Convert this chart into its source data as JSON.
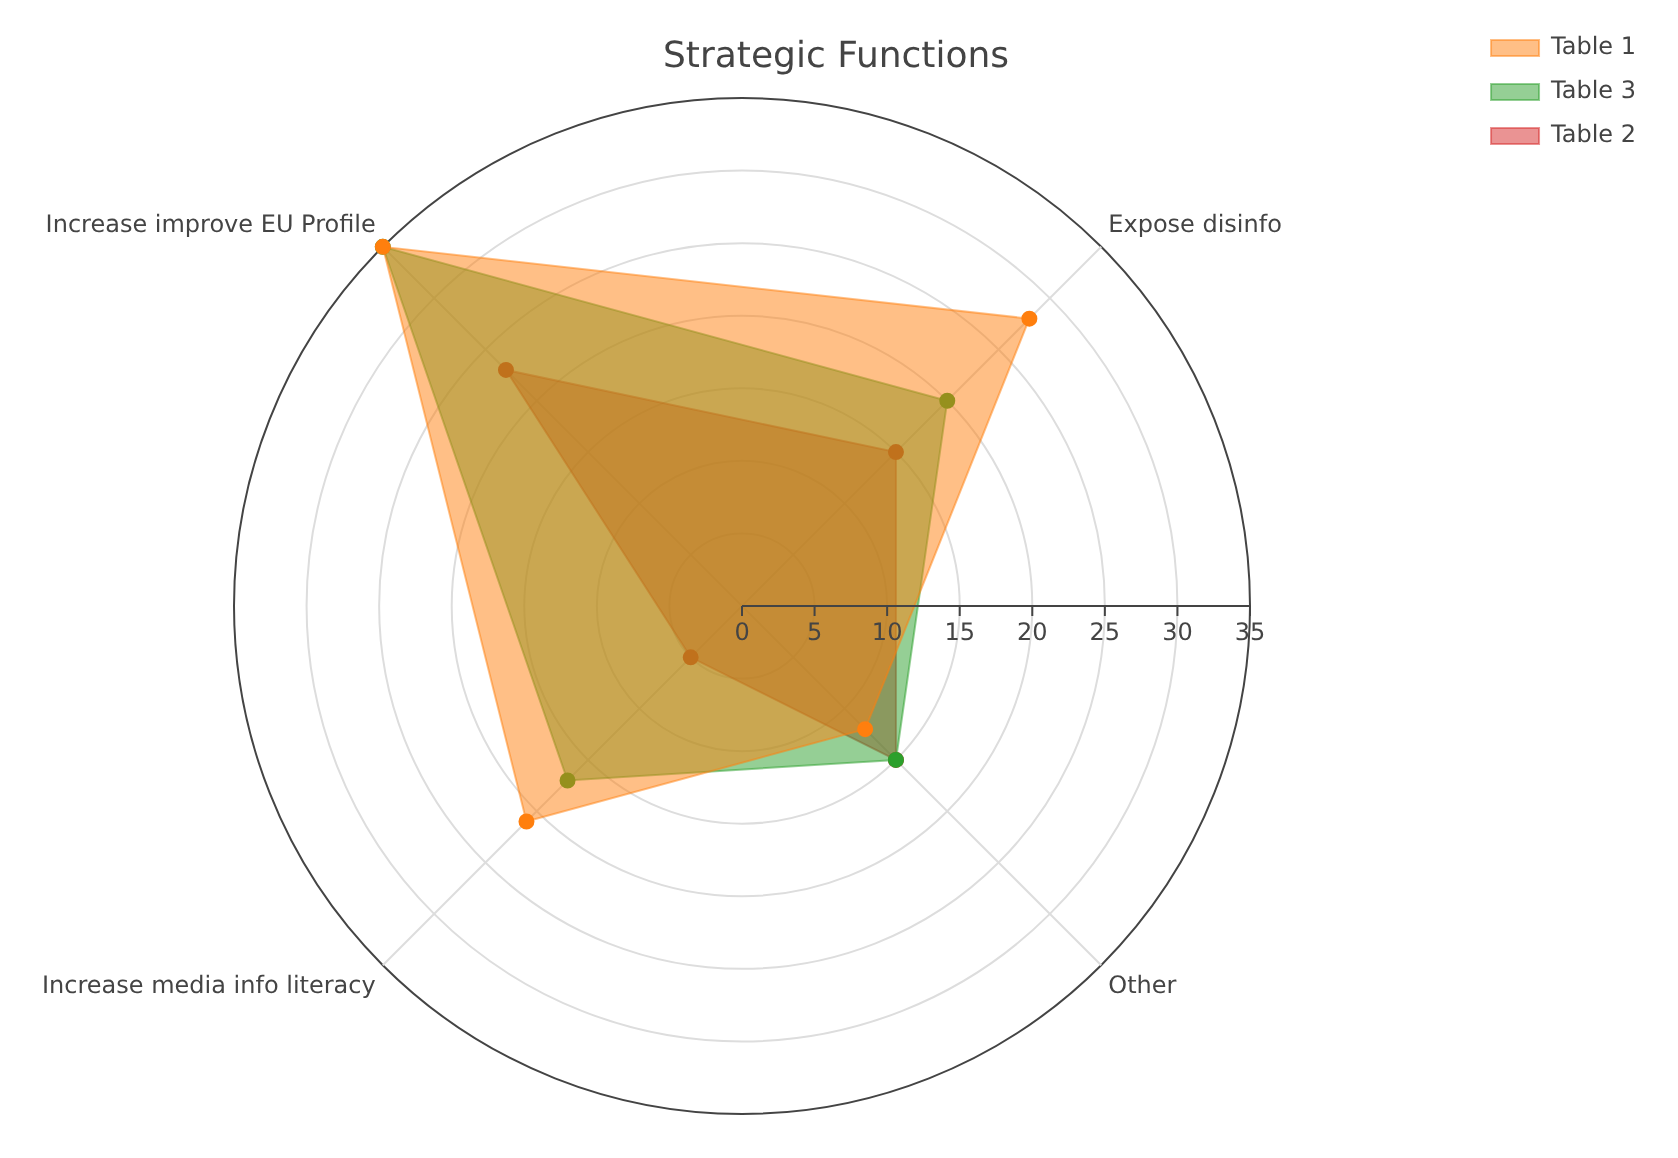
{
  "chart_data": {
    "type": "radar",
    "title": "Strategic Functions",
    "categories": [
      "Expose disinfo",
      "Other",
      "Increase media info literacy",
      "Increase improve EU Profile"
    ],
    "series": [
      {
        "name": "Table 1",
        "color": "#ff7f0e",
        "values": [
          28,
          12,
          21,
          35
        ]
      },
      {
        "name": "Table 3",
        "color": "#2ca02c",
        "values": [
          20,
          15,
          17,
          35
        ]
      },
      {
        "name": "Table 2",
        "color": "#d62728",
        "values": [
          15,
          15,
          5,
          23
        ]
      }
    ],
    "ylim": [
      0,
      35
    ],
    "yticks": [
      0,
      5,
      10,
      15,
      20,
      25,
      30,
      35
    ],
    "grid": true,
    "legend": "top right",
    "marker": "circle"
  }
}
